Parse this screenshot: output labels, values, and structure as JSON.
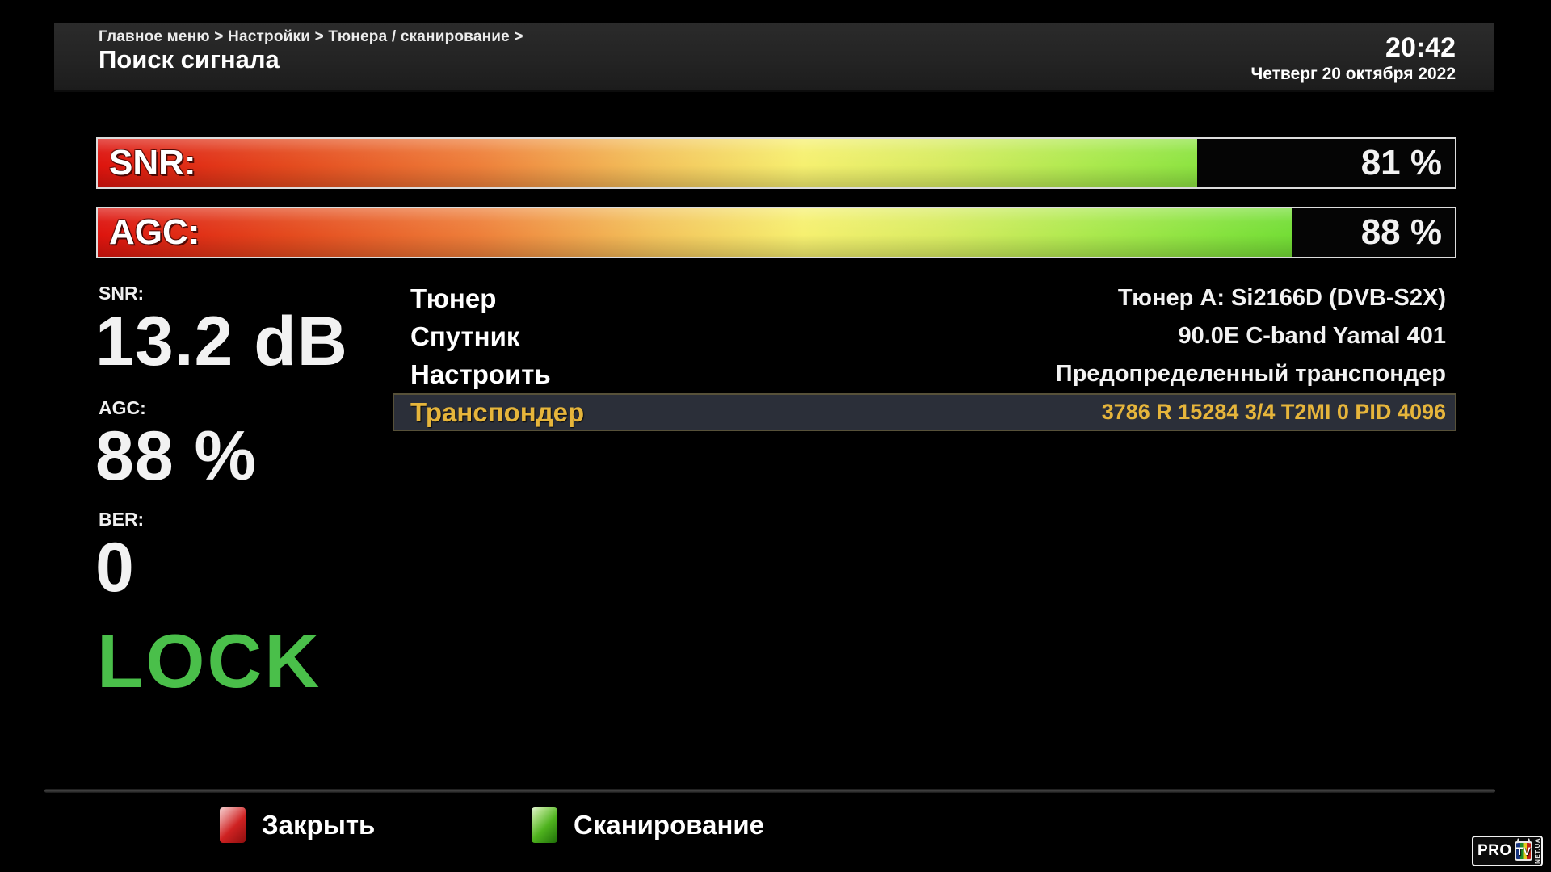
{
  "header": {
    "breadcrumb": "Главное меню > Настройки > Тюнера / сканирование >",
    "title": "Поиск сигнала",
    "time": "20:42",
    "date": "Четверг 20 октября 2022"
  },
  "bars": {
    "snr": {
      "label": "SNR:",
      "value": "81 %",
      "percent": 81
    },
    "agc": {
      "label": "AGC:",
      "value": "88 %",
      "percent": 88
    }
  },
  "readouts": {
    "snr": {
      "label": "SNR:",
      "value": "13.2 dB"
    },
    "agc": {
      "label": "AGC:",
      "value": "88 %"
    },
    "ber": {
      "label": "BER:",
      "value": "0"
    }
  },
  "lock": {
    "text": "LOCK"
  },
  "menu": {
    "rows": [
      {
        "label": "Тюнер",
        "value": "Тюнер A: Si2166D (DVB-S2X)",
        "selected": false
      },
      {
        "label": "Спутник",
        "value": "90.0E C-band Yamal 401",
        "selected": false
      },
      {
        "label": "Настроить",
        "value": "Предопределенный транспондер",
        "selected": false
      },
      {
        "label": "Транспондер",
        "value": "3786 R 15284 3/4 T2MI 0 PID 4096",
        "selected": true
      }
    ]
  },
  "footer": {
    "buttons": [
      {
        "key": "red",
        "label": "Закрыть"
      },
      {
        "key": "green",
        "label": "Сканирование"
      }
    ]
  },
  "logo": {
    "pro": "PRO",
    "tv": "TV",
    "suffix": "NET.UA"
  },
  "colors": {
    "lock_green": "#4abf4a",
    "selected_yellow": "#e6b53b",
    "selected_row_bg": "#2b2f39",
    "selected_row_border": "#575139",
    "bar_gradient_start": "#dd140e",
    "bar_gradient_mid": "#f6f070",
    "bar_gradient_end": "#55d226",
    "key_red": "#cf2222",
    "key_green": "#4fb31e",
    "header_bg": "#232323"
  }
}
